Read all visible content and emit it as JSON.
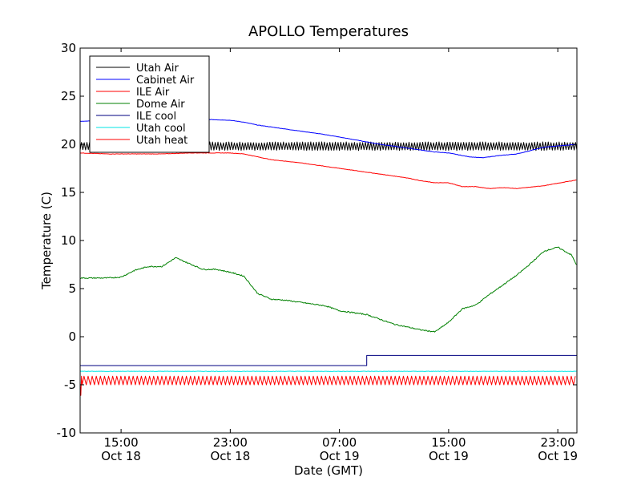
{
  "chart_data": {
    "type": "line",
    "title": "APOLLO Temperatures",
    "xlabel": "Date (GMT)",
    "ylabel": "Temperature (C)",
    "xlim": [
      12.0,
      48.4
    ],
    "ylim": [
      -10,
      30
    ],
    "x_unit": "hours since Oct 18 00:00 GMT",
    "yticks": [
      "30",
      "25",
      "20",
      "15",
      "10",
      "5",
      "0",
      "-5",
      "-10"
    ],
    "xticks": [
      {
        "time": "15:00",
        "date": "Oct 18"
      },
      {
        "time": "23:00",
        "date": "Oct 18"
      },
      {
        "time": "07:00",
        "date": "Oct 19"
      },
      {
        "time": "15:00",
        "date": "Oct 19"
      },
      {
        "time": "23:00",
        "date": "Oct 19"
      }
    ],
    "legend": {
      "position": "top-left",
      "entries": [
        "Utah Air",
        "Cabinet Air",
        "ILE Air",
        "Dome Air",
        "ILE cool",
        "Utah cool",
        "Utah heat"
      ]
    },
    "series": [
      {
        "name": "Utah Air",
        "color": "#000000",
        "style": "oscillating",
        "center": 19.8,
        "amplitude": 0.45,
        "period_hours": 0.2
      },
      {
        "name": "Cabinet Air",
        "color": "#0000ff",
        "style": "line",
        "x": [
          12.0,
          14.0,
          16.5,
          19.0,
          21.0,
          23.0,
          24.0,
          25.0,
          26.0,
          28.0,
          30.0,
          32.0,
          34.0,
          36.0,
          38.0,
          39.0,
          40.5,
          41.5,
          42.5,
          44.0,
          46.0,
          48.4
        ],
        "y": [
          22.4,
          22.5,
          22.6,
          22.6,
          22.6,
          22.5,
          22.3,
          22.0,
          21.8,
          21.4,
          21.0,
          20.5,
          20.0,
          19.6,
          19.2,
          19.1,
          18.7,
          18.6,
          18.8,
          19.0,
          19.7,
          20.0
        ]
      },
      {
        "name": "ILE Air",
        "color": "#ff0000",
        "style": "line",
        "x": [
          12.0,
          14.0,
          16.0,
          18.0,
          20.0,
          22.0,
          23.0,
          24.0,
          25.0,
          26.0,
          28.0,
          30.0,
          32.0,
          34.0,
          36.0,
          37.0,
          38.0,
          39.0,
          39.5,
          40.0,
          41.0,
          42.0,
          43.0,
          44.0,
          46.0,
          48.4
        ],
        "y": [
          19.1,
          19.0,
          19.0,
          19.0,
          19.1,
          19.1,
          19.1,
          19.0,
          18.7,
          18.4,
          18.1,
          17.7,
          17.3,
          16.9,
          16.5,
          16.2,
          16.0,
          16.0,
          15.8,
          15.6,
          15.6,
          15.4,
          15.5,
          15.4,
          15.7,
          16.3
        ]
      },
      {
        "name": "Dome Air",
        "color": "#008000",
        "style": "line",
        "x": [
          12.0,
          13.0,
          14.0,
          15.0,
          16.0,
          17.0,
          18.0,
          19.0,
          19.5,
          20.0,
          21.0,
          22.0,
          23.0,
          24.0,
          25.0,
          26.0,
          27.0,
          28.0,
          29.0,
          30.0,
          31.0,
          32.0,
          33.0,
          34.0,
          35.0,
          36.0,
          37.0,
          38.0,
          39.0,
          40.0,
          41.0,
          42.0,
          43.0,
          44.0,
          45.0,
          46.0,
          47.0,
          48.0,
          48.4
        ],
        "y": [
          6.1,
          6.1,
          6.1,
          6.2,
          6.9,
          7.3,
          7.3,
          8.2,
          7.9,
          7.6,
          7.0,
          7.0,
          6.7,
          6.3,
          4.5,
          3.9,
          3.8,
          3.6,
          3.4,
          3.2,
          2.7,
          2.5,
          2.3,
          1.8,
          1.3,
          1.0,
          0.7,
          0.5,
          1.5,
          2.9,
          3.3,
          4.4,
          5.4,
          6.4,
          7.6,
          8.9,
          9.3,
          8.5,
          7.4
        ]
      },
      {
        "name": "ILE cool",
        "color": "#000080",
        "style": "step",
        "x": [
          12.0,
          33.0,
          33.0,
          48.4
        ],
        "y": [
          -3.0,
          -3.0,
          -1.95,
          -1.95
        ]
      },
      {
        "name": "Utah cool",
        "color": "#00e5e5",
        "style": "line",
        "x": [
          12.0,
          48.4
        ],
        "y": [
          -3.6,
          -3.6
        ]
      },
      {
        "name": "Utah heat",
        "color": "#ff0000",
        "style": "pulses",
        "low": -5.0,
        "high": -4.1,
        "period_hours": 0.3,
        "initial_spike_min": -6.1
      }
    ]
  }
}
